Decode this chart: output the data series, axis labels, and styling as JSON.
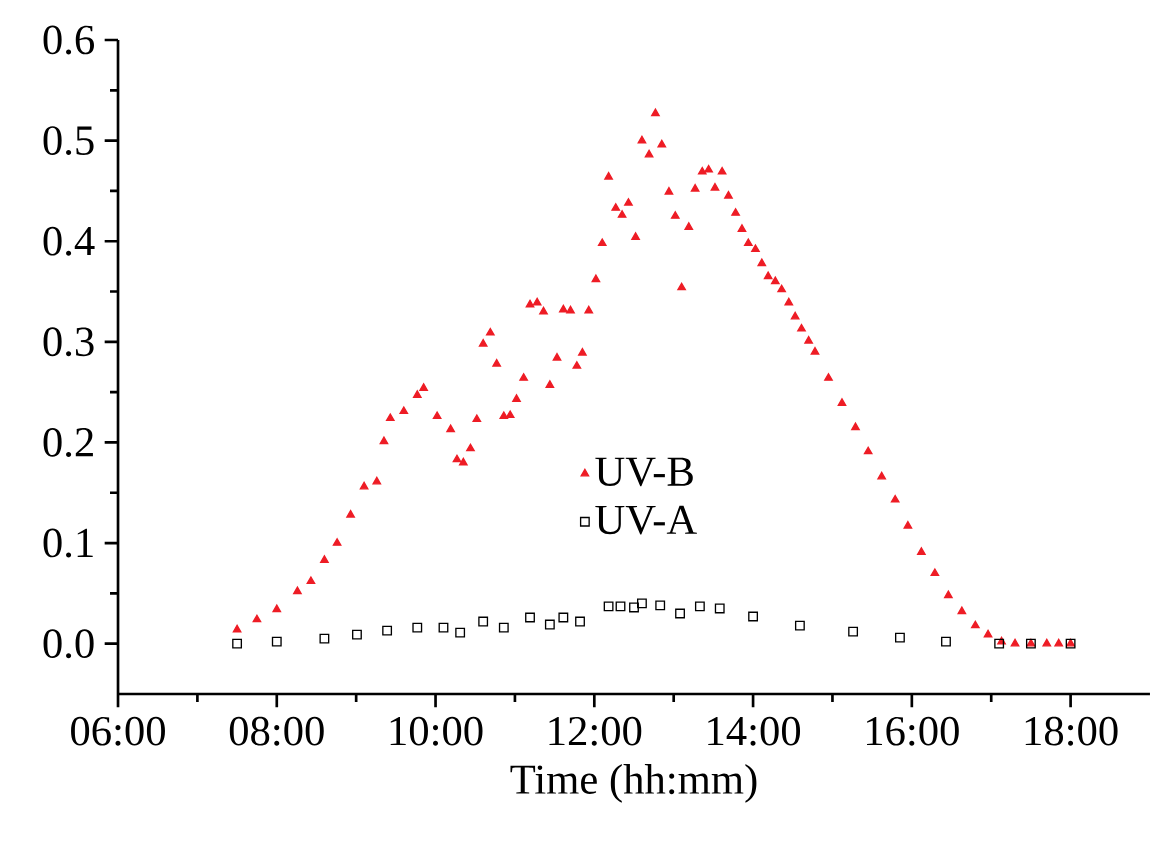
{
  "chart_data": {
    "type": "scatter",
    "xlabel": "Time (hh:mm)",
    "xlim": [
      6,
      19
    ],
    "ylim": [
      -0.05,
      0.6
    ],
    "xticks": [
      {
        "value": 6,
        "label": "06:00"
      },
      {
        "value": 7,
        "label": null
      },
      {
        "value": 8,
        "label": "08:00"
      },
      {
        "value": 9,
        "label": null
      },
      {
        "value": 10,
        "label": "10:00"
      },
      {
        "value": 11,
        "label": null
      },
      {
        "value": 12,
        "label": "12:00"
      },
      {
        "value": 13,
        "label": null
      },
      {
        "value": 14,
        "label": "14:00"
      },
      {
        "value": 15,
        "label": null
      },
      {
        "value": 16,
        "label": "16:00"
      },
      {
        "value": 17,
        "label": null
      },
      {
        "value": 18,
        "label": "18:00"
      }
    ],
    "yticks": [
      {
        "value": 0,
        "label": "0.0"
      },
      {
        "value": 0.05,
        "label": null
      },
      {
        "value": 0.1,
        "label": "0.1"
      },
      {
        "value": 0.15,
        "label": null
      },
      {
        "value": 0.2,
        "label": "0.2"
      },
      {
        "value": 0.25,
        "label": null
      },
      {
        "value": 0.3,
        "label": "0.3"
      },
      {
        "value": 0.35,
        "label": null
      },
      {
        "value": 0.4,
        "label": "0.4"
      },
      {
        "value": 0.45,
        "label": null
      },
      {
        "value": 0.5,
        "label": "0.5"
      },
      {
        "value": 0.55,
        "label": null
      },
      {
        "value": 0.6,
        "label": "0.6"
      }
    ],
    "grid": false,
    "legend": "center",
    "series": [
      {
        "name": "UV-B",
        "color": "#ee1c25",
        "marker": "triangle",
        "x": [
          7.5,
          7.75,
          8.0,
          8.26,
          8.43,
          8.6,
          8.76,
          8.93,
          9.1,
          9.26,
          9.35,
          9.43,
          9.6,
          9.77,
          9.85,
          10.02,
          10.19,
          10.27,
          10.35,
          10.44,
          10.52,
          10.6,
          10.69,
          10.77,
          10.86,
          10.94,
          11.02,
          11.11,
          11.19,
          11.28,
          11.36,
          11.44,
          11.53,
          11.61,
          11.7,
          11.78,
          11.85,
          11.93,
          12.02,
          12.1,
          12.18,
          12.27,
          12.35,
          12.43,
          12.52,
          12.6,
          12.69,
          12.77,
          12.85,
          12.94,
          13.02,
          13.1,
          13.19,
          13.27,
          13.36,
          13.44,
          13.52,
          13.61,
          13.69,
          13.78,
          13.86,
          13.94,
          14.03,
          14.11,
          14.19,
          14.28,
          14.36,
          14.45,
          14.53,
          14.61,
          14.7,
          14.78,
          14.95,
          15.12,
          15.29,
          15.45,
          15.62,
          15.79,
          15.95,
          16.12,
          16.29,
          16.46,
          16.63,
          16.8,
          16.96,
          17.13,
          17.3,
          17.5,
          17.7,
          17.85,
          18.0
        ],
        "values": [
          0.014,
          0.024,
          0.034,
          0.052,
          0.062,
          0.083,
          0.1,
          0.128,
          0.156,
          0.161,
          0.201,
          0.224,
          0.231,
          0.247,
          0.254,
          0.226,
          0.213,
          0.183,
          0.18,
          0.194,
          0.223,
          0.298,
          0.309,
          0.278,
          0.226,
          0.227,
          0.243,
          0.264,
          0.337,
          0.339,
          0.33,
          0.257,
          0.284,
          0.332,
          0.331,
          0.276,
          0.289,
          0.331,
          0.362,
          0.398,
          0.464,
          0.433,
          0.426,
          0.438,
          0.404,
          0.5,
          0.486,
          0.527,
          0.496,
          0.449,
          0.425,
          0.354,
          0.414,
          0.452,
          0.469,
          0.471,
          0.453,
          0.469,
          0.445,
          0.428,
          0.412,
          0.398,
          0.392,
          0.378,
          0.365,
          0.36,
          0.352,
          0.339,
          0.325,
          0.313,
          0.301,
          0.29,
          0.264,
          0.239,
          0.215,
          0.191,
          0.166,
          0.143,
          0.117,
          0.091,
          0.07,
          0.048,
          0.032,
          0.018,
          0.009,
          0.002,
          0.0,
          0.0,
          0.0,
          0.0,
          0.0
        ]
      },
      {
        "name": "UV-A",
        "color": "#000000",
        "marker": "square",
        "x": [
          7.5,
          8.0,
          8.6,
          9.01,
          9.39,
          9.77,
          10.1,
          10.31,
          10.6,
          10.86,
          11.19,
          11.44,
          11.61,
          11.82,
          12.18,
          12.33,
          12.5,
          12.6,
          12.83,
          13.08,
          13.33,
          13.58,
          14.0,
          14.59,
          15.26,
          15.85,
          16.43,
          17.1,
          17.5,
          18.0
        ],
        "values": [
          0.0,
          0.002,
          0.005,
          0.009,
          0.013,
          0.016,
          0.016,
          0.011,
          0.022,
          0.016,
          0.026,
          0.019,
          0.026,
          0.022,
          0.037,
          0.037,
          0.036,
          0.04,
          0.038,
          0.03,
          0.037,
          0.035,
          0.027,
          0.018,
          0.012,
          0.006,
          0.002,
          0.0,
          0.0,
          0.0
        ]
      }
    ]
  }
}
